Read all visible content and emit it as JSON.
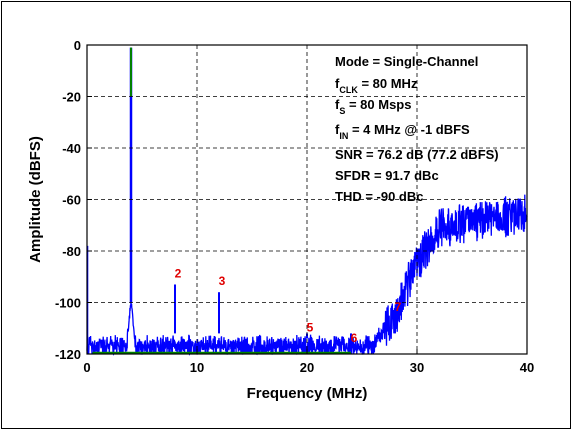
{
  "chart_data": {
    "type": "line",
    "xlabel": "Frequency (MHz)",
    "ylabel": "Amplitude (dBFS)",
    "xlim": [
      0,
      40
    ],
    "ylim": [
      -120,
      0
    ],
    "x_ticks": [
      "0",
      "10",
      "20",
      "30",
      "40"
    ],
    "y_ticks": [
      "0",
      "-20",
      "-40",
      "-60",
      "-80",
      "-100",
      "-120"
    ],
    "grid": true,
    "colors": {
      "spectrum": "#0000ff",
      "harmonic_marker": "#e00000",
      "fundamental": "#008000"
    },
    "fundamental": {
      "freq_mhz": 4,
      "amplitude_dbfs": -1
    },
    "harmonics": [
      {
        "label": "2",
        "freq_mhz": 8,
        "amplitude_dbfs": -93
      },
      {
        "label": "3",
        "freq_mhz": 12,
        "amplitude_dbfs": -96
      },
      {
        "label": "5",
        "freq_mhz": 20,
        "amplitude_dbfs": -114
      },
      {
        "label": "6",
        "freq_mhz": 24,
        "amplitude_dbfs": -118
      },
      {
        "label": "7",
        "freq_mhz": 28,
        "amplitude_dbfs": -106
      }
    ],
    "noise_floor": [
      {
        "freq_mhz": 0,
        "floor_dbfs": -117
      },
      {
        "freq_mhz": 26,
        "floor_dbfs": -117
      },
      {
        "freq_mhz": 28,
        "floor_dbfs": -105
      },
      {
        "freq_mhz": 30,
        "floor_dbfs": -85
      },
      {
        "freq_mhz": 32,
        "floor_dbfs": -72
      },
      {
        "freq_mhz": 35,
        "floor_dbfs": -68
      },
      {
        "freq_mhz": 40,
        "floor_dbfs": -66
      }
    ],
    "annotations": {
      "mode": "Mode = Single-Channel",
      "fclk": {
        "main": "f",
        "sub": "CLK",
        "rest": " = 80 MHz"
      },
      "fs": {
        "main": "f",
        "sub": "S",
        "rest": " = 80 Msps"
      },
      "fin": {
        "main": "f",
        "sub": "IN",
        "rest": " = 4 MHz @ -1 dBFS"
      },
      "snr": "SNR = 76.2 dB (77.2 dBFS)",
      "sfdr": "SFDR = 91.7 dBc",
      "thd": "THD = -90 dBc"
    }
  }
}
